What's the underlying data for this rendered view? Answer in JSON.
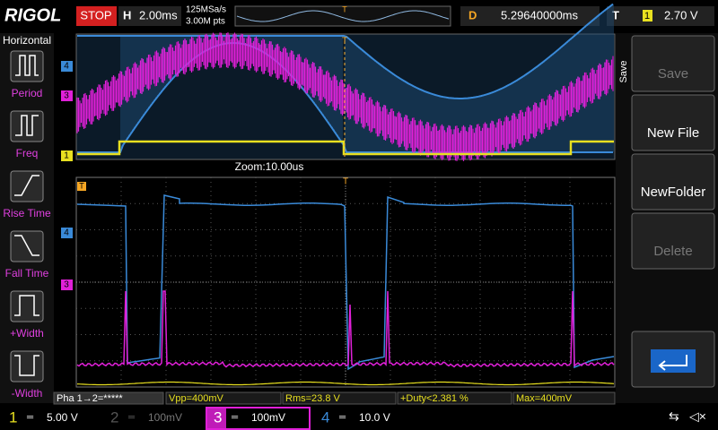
{
  "header": {
    "brand": "RIGOL",
    "status": "STOP",
    "timebase_label": "H",
    "timebase": "2.00ms",
    "sample_rate": "125MSa/s",
    "memory_depth": "3.00M pts",
    "delay_label": "D",
    "delay": "5.29640000ms",
    "trigger_label": "T",
    "trigger_source": "1",
    "trigger_level": "2.70 V"
  },
  "left_menu": {
    "title": "Horizontal",
    "items": [
      "Period",
      "Freq",
      "Rise Time",
      "Fall Time",
      "+Width",
      "-Width"
    ]
  },
  "right_menu": {
    "title": "Save",
    "items": [
      "Save",
      "New File",
      "NewFolder",
      "Delete"
    ]
  },
  "zoom_label": "Zoom:10.00us",
  "channel_markers": [
    "4",
    "3",
    "1"
  ],
  "measurements": [
    "Pha 1→2=*****",
    "Vpp=400mV",
    "Rms=23.8 V",
    "+Duty<2.381 %",
    "Max=400mV"
  ],
  "channels": [
    {
      "number": "1",
      "scale": "5.00 V"
    },
    {
      "number": "2",
      "scale": "100mV"
    },
    {
      "number": "3",
      "scale": "100mV"
    },
    {
      "number": "4",
      "scale": "10.0 V"
    }
  ]
}
